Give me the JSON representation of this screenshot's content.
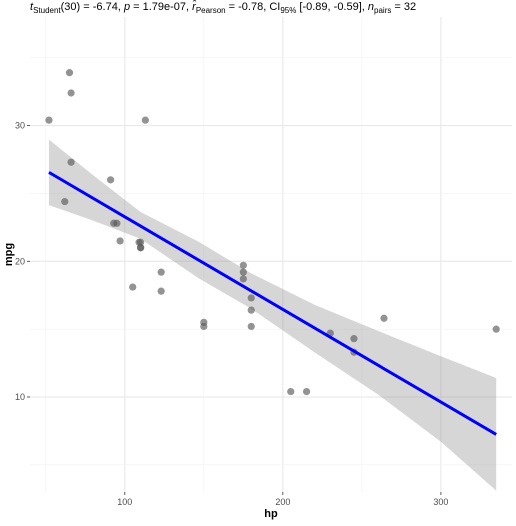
{
  "subtitle": {
    "t_label": "t",
    "t_sub": "Student",
    "t_val": "(30) = -6.74, ",
    "p_label": "p",
    "p_val": " = 1.79e-07, ",
    "r_label": "r̂",
    "r_sub": "Pearson",
    "r_val": " = -0.78, CI",
    "ci_sub": "95%",
    "ci_val": " [-0.89, -0.59], ",
    "n_label": "n",
    "n_sub": "pairs",
    "n_val": " = 32"
  },
  "chart_data": {
    "type": "scatter",
    "xlabel": "hp",
    "ylabel": "mpg",
    "xlim": [
      40,
      345
    ],
    "ylim": [
      3,
      38
    ],
    "x_ticks": [
      100,
      200,
      300
    ],
    "y_ticks": [
      10,
      20,
      30
    ],
    "grid": true,
    "point_color": "#595959",
    "line_color": "#0000ff",
    "band_color": "#999999",
    "points": [
      {
        "x": 52,
        "y": 30.4
      },
      {
        "x": 62,
        "y": 24.4
      },
      {
        "x": 65,
        "y": 33.9
      },
      {
        "x": 66,
        "y": 32.4
      },
      {
        "x": 66,
        "y": 27.3
      },
      {
        "x": 91,
        "y": 26.0
      },
      {
        "x": 93,
        "y": 22.8
      },
      {
        "x": 95,
        "y": 22.8
      },
      {
        "x": 97,
        "y": 21.5
      },
      {
        "x": 105,
        "y": 18.1
      },
      {
        "x": 109,
        "y": 21.4
      },
      {
        "x": 110,
        "y": 21.0
      },
      {
        "x": 110,
        "y": 21.0
      },
      {
        "x": 110,
        "y": 21.4
      },
      {
        "x": 113,
        "y": 30.4
      },
      {
        "x": 123,
        "y": 17.8
      },
      {
        "x": 123,
        "y": 19.2
      },
      {
        "x": 150,
        "y": 15.2
      },
      {
        "x": 150,
        "y": 15.5
      },
      {
        "x": 175,
        "y": 18.7
      },
      {
        "x": 175,
        "y": 19.2
      },
      {
        "x": 175,
        "y": 19.7
      },
      {
        "x": 180,
        "y": 16.4
      },
      {
        "x": 180,
        "y": 17.3
      },
      {
        "x": 180,
        "y": 15.2
      },
      {
        "x": 205,
        "y": 10.4
      },
      {
        "x": 215,
        "y": 10.4
      },
      {
        "x": 230,
        "y": 14.7
      },
      {
        "x": 245,
        "y": 13.3
      },
      {
        "x": 245,
        "y": 14.3
      },
      {
        "x": 264,
        "y": 15.8
      },
      {
        "x": 335,
        "y": 15.0
      }
    ],
    "fit_line": {
      "x": [
        52,
        335
      ],
      "y": [
        26.55,
        7.24
      ]
    },
    "confidence_band": {
      "x": [
        52,
        80,
        110,
        146.7,
        180,
        220,
        260,
        300,
        335
      ],
      "upper": [
        28.96,
        26.34,
        23.63,
        21.44,
        19.11,
        16.8,
        14.88,
        13.0,
        11.4
      ],
      "lower": [
        24.14,
        23.0,
        21.65,
        18.75,
        16.5,
        13.3,
        10.2,
        6.7,
        3.1
      ]
    }
  }
}
